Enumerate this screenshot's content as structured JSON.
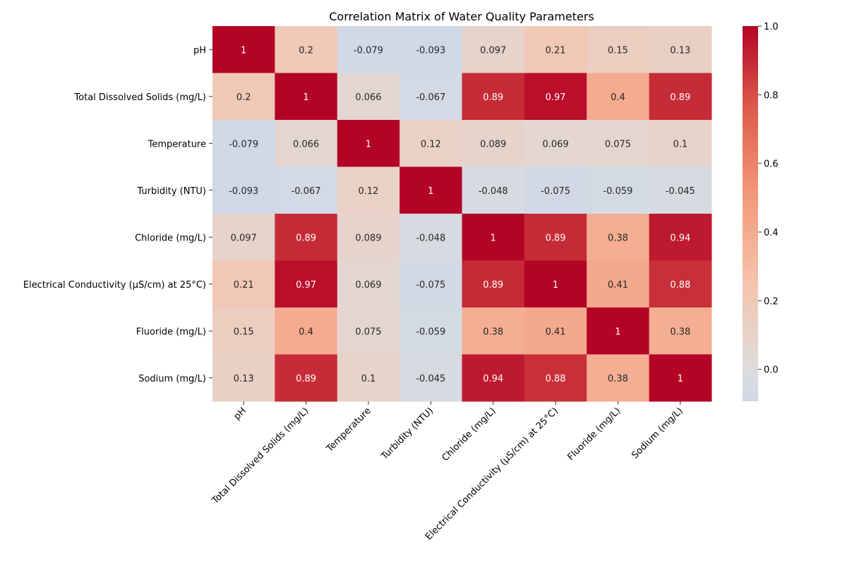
{
  "chart_data": {
    "type": "heatmap",
    "title": "Correlation Matrix of Water Quality Parameters",
    "rows": [
      "pH",
      "Total Dissolved Solids (mg/L)",
      "Temperature",
      "Turbidity (NTU)",
      "Chloride (mg/L)",
      "Electrical Conductivity (µS/cm) at 25°C)",
      "Fluoride (mg/L)",
      "Sodium (mg/L)"
    ],
    "columns": [
      "pH",
      "Total Dissolved Solids (mg/L)",
      "Temperature",
      "Turbidity (NTU)",
      "Chloride (mg/L)",
      "Electrical Conductivity (µS/cm) at 25°C)",
      "Fluoride (mg/L)",
      "Sodium (mg/L)"
    ],
    "values": [
      [
        1,
        0.2,
        -0.079,
        -0.093,
        0.097,
        0.21,
        0.15,
        0.13
      ],
      [
        0.2,
        1,
        0.066,
        -0.067,
        0.89,
        0.97,
        0.4,
        0.89
      ],
      [
        -0.079,
        0.066,
        1,
        0.12,
        0.089,
        0.069,
        0.075,
        0.1
      ],
      [
        -0.093,
        -0.067,
        0.12,
        1,
        -0.048,
        -0.075,
        -0.059,
        -0.045
      ],
      [
        0.097,
        0.89,
        0.089,
        -0.048,
        1,
        0.89,
        0.38,
        0.94
      ],
      [
        0.21,
        0.97,
        0.069,
        -0.075,
        0.89,
        1,
        0.41,
        0.88
      ],
      [
        0.15,
        0.4,
        0.075,
        -0.059,
        0.38,
        0.41,
        1,
        0.38
      ],
      [
        0.13,
        0.89,
        0.1,
        -0.045,
        0.94,
        0.88,
        0.38,
        1
      ]
    ],
    "colormap": "coolwarm",
    "color_range": [
      -0.093,
      1.0
    ],
    "colorbar_ticks": [
      "0.0",
      "0.2",
      "0.4",
      "0.6",
      "0.8",
      "1.0"
    ],
    "annotations": true,
    "grid": false
  }
}
